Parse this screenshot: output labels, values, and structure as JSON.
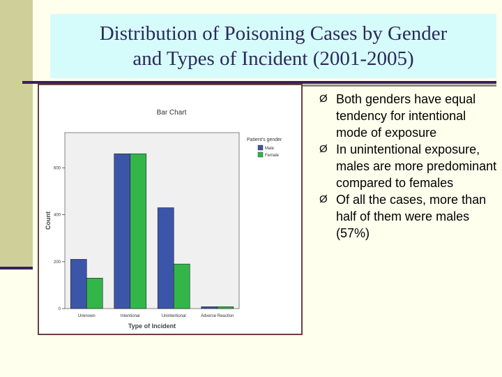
{
  "slide": {
    "title_line1": "Distribution of Poisoning Cases by Gender",
    "title_line2": "and Types of Incident (2001-2005)",
    "bullets": [
      "Both genders have equal tendency for intentional mode of exposure",
      "In unintentional exposure, males are more predominant compared to females",
      "Of all the cases, more than half of them were males (57%)"
    ],
    "bullet_glyph": "Ø"
  },
  "colors": {
    "male": "#3b55a8",
    "female": "#33b54a",
    "title_bg": "#d6fbfb",
    "accent": "#3a1f5c"
  },
  "chart_data": {
    "type": "bar",
    "title": "Bar Chart",
    "xlabel": "Type of Incident",
    "ylabel": "Count",
    "categories": [
      "Unknown",
      "Intentional",
      "Unintentional",
      "Adverse Reaction"
    ],
    "series": [
      {
        "name": "Male",
        "values": [
          210,
          660,
          430,
          8
        ]
      },
      {
        "name": "Female",
        "values": [
          130,
          660,
          190,
          8
        ]
      }
    ],
    "ylim": [
      0,
      750
    ],
    "yticks": [
      0,
      200,
      400,
      600
    ],
    "legend_title": "Patient's gender",
    "legend_position": "right",
    "grid": false
  }
}
